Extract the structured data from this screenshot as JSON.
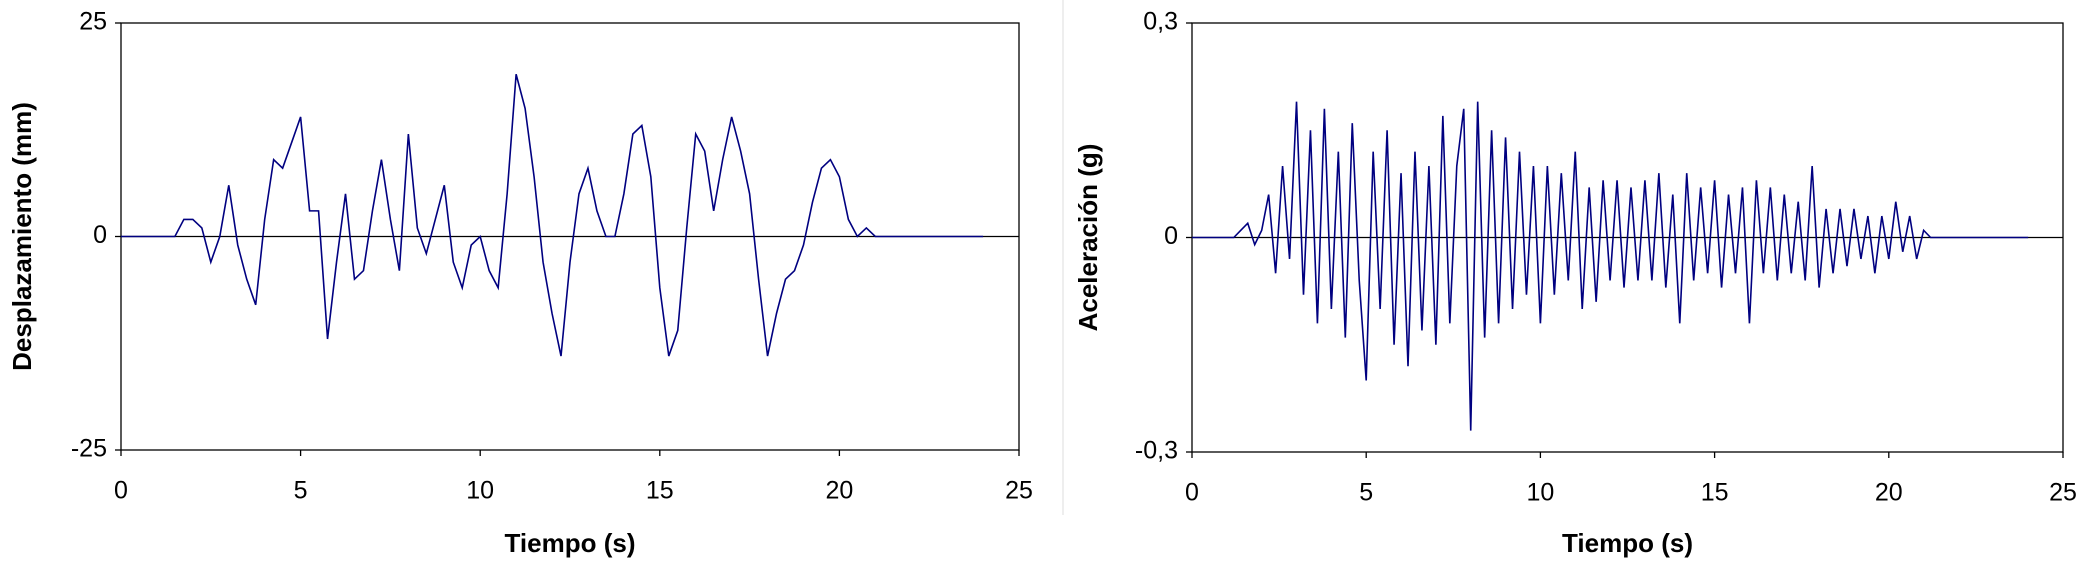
{
  "chart_data": [
    {
      "type": "line",
      "xlabel": "Tiempo (s)",
      "ylabel": "Desplazamiento (mm)",
      "color": "#000080",
      "xlim": [
        0,
        25
      ],
      "xticks": [
        0,
        5,
        10,
        15,
        20,
        25
      ],
      "ylim": [
        -25,
        25
      ],
      "yticks": [
        -25,
        0,
        25
      ],
      "zero_line": true,
      "x": [
        0,
        0.25,
        0.5,
        0.75,
        1,
        1.25,
        1.5,
        1.75,
        2,
        2.25,
        2.5,
        2.75,
        3,
        3.25,
        3.5,
        3.75,
        4,
        4.25,
        4.5,
        4.75,
        5,
        5.25,
        5.5,
        5.75,
        6,
        6.25,
        6.5,
        6.75,
        7,
        7.25,
        7.5,
        7.75,
        8,
        8.25,
        8.5,
        8.75,
        9,
        9.25,
        9.5,
        9.75,
        10,
        10.25,
        10.5,
        10.75,
        11,
        11.25,
        11.5,
        11.75,
        12,
        12.25,
        12.5,
        12.75,
        13,
        13.25,
        13.5,
        13.75,
        14,
        14.25,
        14.5,
        14.75,
        15,
        15.25,
        15.5,
        15.75,
        16,
        16.25,
        16.5,
        16.75,
        17,
        17.25,
        17.5,
        17.75,
        18,
        18.25,
        18.5,
        18.75,
        19,
        19.25,
        19.5,
        19.75,
        20,
        20.25,
        20.5,
        20.75,
        21,
        21.25,
        21.5,
        21.75,
        22,
        22.25,
        22.5,
        22.75,
        23,
        23.25,
        23.5,
        23.75,
        24
      ],
      "values": [
        0,
        0,
        0,
        0,
        0,
        0,
        0,
        2,
        2,
        1,
        -3,
        0,
        6,
        -1,
        -5,
        -8,
        2,
        9,
        8,
        11,
        14,
        3,
        3,
        -12,
        -3,
        5,
        -5,
        -4,
        3,
        9,
        2,
        -4,
        12,
        1,
        -2,
        2,
        6,
        -3,
        -6,
        -1,
        0,
        -4,
        -6,
        5,
        19,
        15,
        7,
        -3,
        -9,
        -14,
        -3,
        5,
        8,
        3,
        0,
        0,
        5,
        12,
        13,
        7,
        -6,
        -14,
        -11,
        1,
        12,
        10,
        3,
        9,
        14,
        10,
        5,
        -5,
        -14,
        -9,
        -5,
        -4,
        -1,
        4,
        8,
        9,
        7,
        2,
        0,
        1,
        0,
        0,
        0,
        0,
        0,
        0,
        0,
        0,
        0,
        0,
        0,
        0,
        0
      ]
    },
    {
      "type": "line",
      "xlabel": "Tiempo (s)",
      "ylabel": "Aceleración (g)",
      "color": "#000080",
      "xlim": [
        0,
        25
      ],
      "xticks": [
        0,
        5,
        10,
        15,
        20,
        25
      ],
      "ylim": [
        -0.3,
        0.3
      ],
      "yticks": [
        {
          "value": -0.3,
          "label": "-0,3"
        },
        0,
        {
          "value": 0.3,
          "label": "0,3"
        }
      ],
      "zero_line": true,
      "x": [
        0,
        0.2,
        0.4,
        0.6,
        0.8,
        1,
        1.2,
        1.4,
        1.6,
        1.8,
        2,
        2.2,
        2.4,
        2.6,
        2.8,
        3,
        3.2,
        3.4,
        3.6,
        3.8,
        4,
        4.2,
        4.4,
        4.6,
        4.8,
        5,
        5.2,
        5.4,
        5.6,
        5.8,
        6,
        6.2,
        6.4,
        6.6,
        6.8,
        7,
        7.2,
        7.4,
        7.6,
        7.8,
        8,
        8.2,
        8.4,
        8.6,
        8.8,
        9,
        9.2,
        9.4,
        9.6,
        9.8,
        10,
        10.2,
        10.4,
        10.6,
        10.8,
        11,
        11.2,
        11.4,
        11.6,
        11.8,
        12,
        12.2,
        12.4,
        12.6,
        12.8,
        13,
        13.2,
        13.4,
        13.6,
        13.8,
        14,
        14.2,
        14.4,
        14.6,
        14.8,
        15,
        15.2,
        15.4,
        15.6,
        15.8,
        16,
        16.2,
        16.4,
        16.6,
        16.8,
        17,
        17.2,
        17.4,
        17.6,
        17.8,
        18,
        18.2,
        18.4,
        18.6,
        18.8,
        19,
        19.2,
        19.4,
        19.6,
        19.8,
        20,
        20.2,
        20.4,
        20.6,
        20.8,
        21,
        21.2,
        21.4,
        21.6,
        21.8,
        22,
        22.2,
        22.4,
        22.6,
        22.8,
        23,
        23.2,
        23.4,
        23.6,
        23.8,
        24
      ],
      "values": [
        0,
        0,
        0,
        0,
        0,
        0,
        0,
        0.01,
        0.02,
        -0.01,
        0.01,
        0.06,
        -0.05,
        0.1,
        -0.03,
        0.19,
        -0.08,
        0.15,
        -0.12,
        0.18,
        -0.1,
        0.12,
        -0.14,
        0.16,
        -0.06,
        -0.2,
        0.12,
        -0.1,
        0.15,
        -0.15,
        0.09,
        -0.18,
        0.12,
        -0.13,
        0.1,
        -0.15,
        0.17,
        -0.12,
        0.1,
        0.18,
        -0.27,
        0.19,
        -0.14,
        0.15,
        -0.12,
        0.14,
        -0.1,
        0.12,
        -0.08,
        0.1,
        -0.12,
        0.1,
        -0.08,
        0.09,
        -0.06,
        0.12,
        -0.1,
        0.07,
        -0.09,
        0.08,
        -0.06,
        0.08,
        -0.07,
        0.07,
        -0.06,
        0.08,
        -0.06,
        0.09,
        -0.07,
        0.06,
        -0.12,
        0.09,
        -0.06,
        0.07,
        -0.05,
        0.08,
        -0.07,
        0.06,
        -0.05,
        0.07,
        -0.12,
        0.08,
        -0.05,
        0.07,
        -0.06,
        0.06,
        -0.05,
        0.05,
        -0.06,
        0.1,
        -0.07,
        0.04,
        -0.05,
        0.04,
        -0.04,
        0.04,
        -0.03,
        0.03,
        -0.05,
        0.03,
        -0.03,
        0.05,
        -0.02,
        0.03,
        -0.03,
        0.01,
        0,
        0,
        0,
        0,
        0,
        0,
        0,
        0,
        0,
        0,
        0,
        0,
        0,
        0,
        0
      ]
    }
  ]
}
